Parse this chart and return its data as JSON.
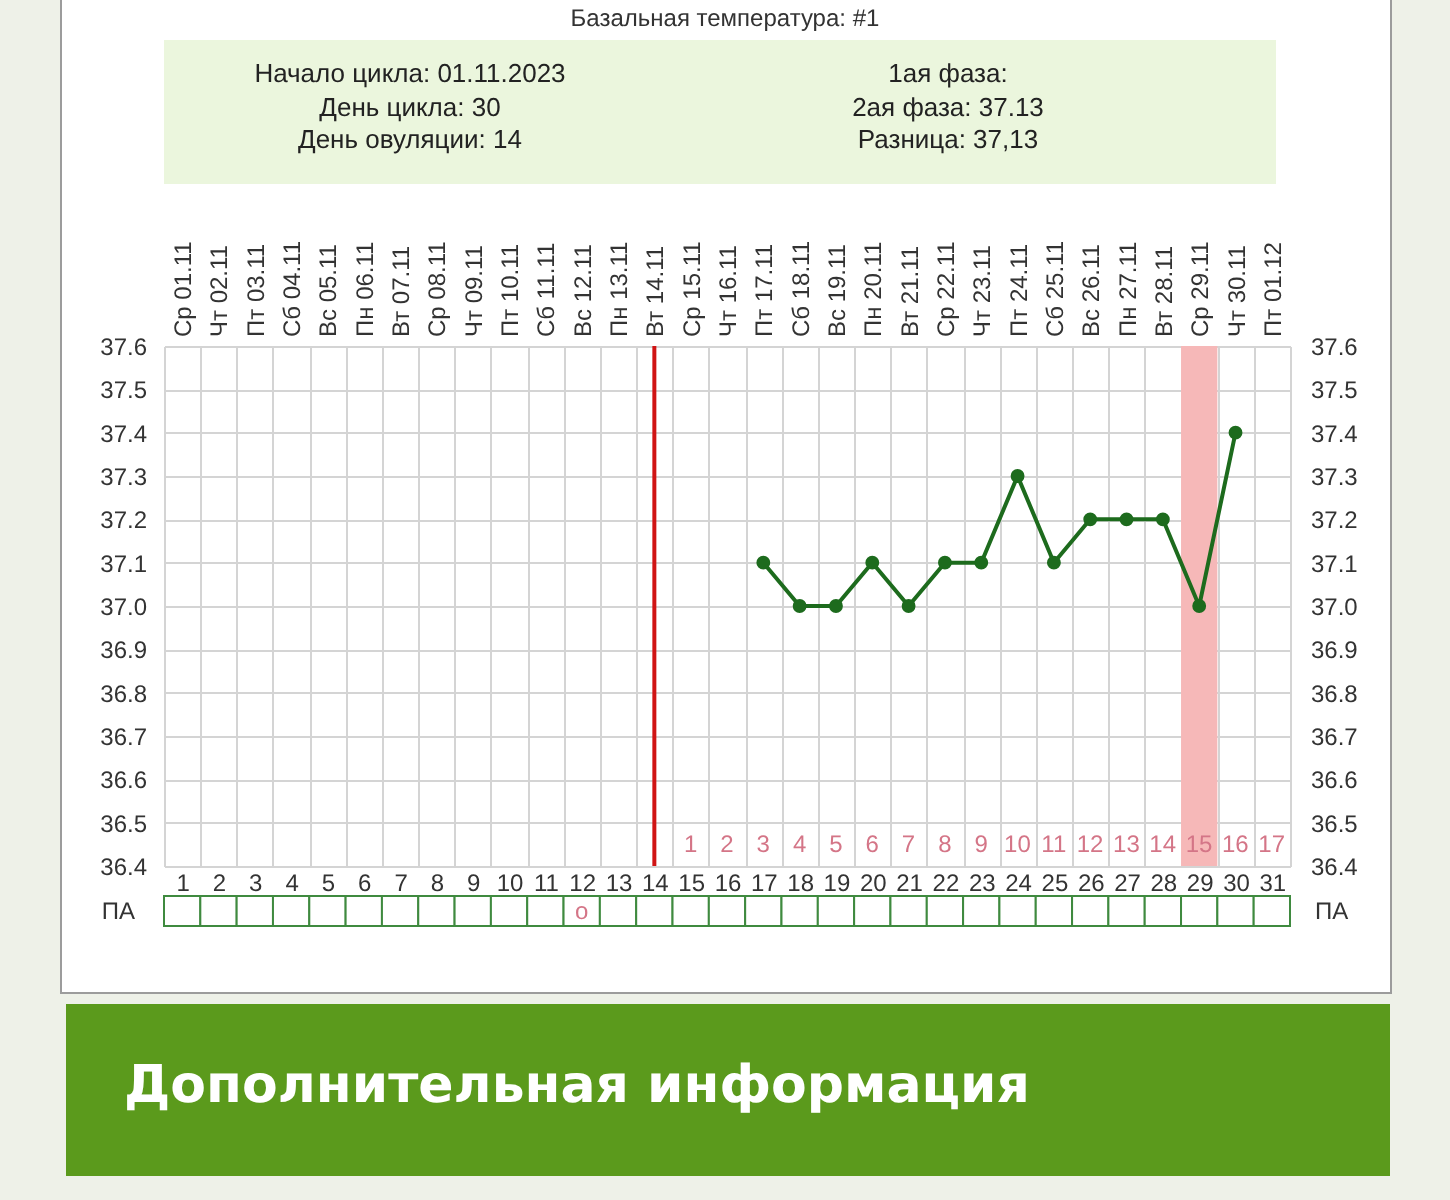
{
  "chart_data": [
    {
      "type": "line",
      "title": "Базальная температура: #1",
      "annotations": [
        "Начало цикла: 01.11.2023",
        "День цикла: 30",
        "День овуляции: 14",
        "1ая фаза:",
        "2ая фаза: 37.13",
        "Разница: 37,13",
        "1 2 3 4 5 6 7 8 9 10 11 12 13 14 15 16 17",
        "Дополнительная информация"
      ],
      "series": [
        {
          "color": "#1d6b1d",
          "x": [
            17,
            18,
            19,
            20,
            21,
            22,
            23,
            24,
            25,
            26,
            27,
            28,
            29,
            30
          ],
          "values": [
            37.1,
            37,
            37,
            37.1,
            37,
            37.1,
            37.1,
            37.3,
            37.1,
            37.2,
            37.2,
            37.2,
            37,
            37.4
          ]
        }
      ],
      "xlim": [
        0.5,
        31.5
      ],
      "xticks": [
        1,
        2,
        3,
        4,
        5,
        6,
        7,
        8,
        9,
        10,
        11,
        12,
        13,
        14,
        15,
        16,
        17,
        18,
        19,
        20,
        21,
        22,
        23,
        24,
        25,
        26,
        27,
        28,
        29,
        30,
        31
      ],
      "x2lim": [
        "2023-10-31T12:00",
        "2023-12-01T12:00"
      ],
      "x2ticks": [
        {
          "value": "2023-11-01",
          "label": "Ср 01.11"
        },
        {
          "value": "2023-11-02",
          "label": "Чт 02.11"
        },
        {
          "value": "2023-11-03",
          "label": "Пт 03.11"
        },
        {
          "value": "2023-11-04",
          "label": "Сб 04.11"
        },
        {
          "value": "2023-11-05",
          "label": "Вс 05.11"
        },
        {
          "value": "2023-11-06",
          "label": "Пн 06.11"
        },
        {
          "value": "2023-11-07",
          "label": "Вт 07.11"
        },
        {
          "value": "2023-11-08",
          "label": "Ср 08.11"
        },
        {
          "value": "2023-11-09",
          "label": "Чт 09.11"
        },
        {
          "value": "2023-11-10",
          "label": "Пт 10.11"
        },
        {
          "value": "2023-11-11",
          "label": "Сб 11.11"
        },
        {
          "value": "2023-11-12",
          "label": "Вс 12.11"
        },
        {
          "value": "2023-11-13",
          "label": "Пн 13.11"
        },
        {
          "value": "2023-11-14",
          "label": "Вт 14.11"
        },
        {
          "value": "2023-11-15",
          "label": "Ср 15.11"
        },
        {
          "value": "2023-11-16",
          "label": "Чт 16.11"
        },
        {
          "value": "2023-11-17",
          "label": "Пт 17.11"
        },
        {
          "value": "2023-11-18",
          "label": "Сб 18.11"
        },
        {
          "value": "2023-11-19",
          "label": "Вс 19.11"
        },
        {
          "value": "2023-11-20",
          "label": "Пн 20.11"
        },
        {
          "value": "2023-11-21",
          "label": "Вт 21.11"
        },
        {
          "value": "2023-11-22",
          "label": "Ср 22.11"
        },
        {
          "value": "2023-11-23",
          "label": "Чт 23.11"
        },
        {
          "value": "2023-11-24",
          "label": "Пт 24.11"
        },
        {
          "value": "2023-11-25",
          "label": "Сб 25.11"
        },
        {
          "value": "2023-11-26",
          "label": "Вс 26.11"
        },
        {
          "value": "2023-11-27",
          "label": "Пн 27.11"
        },
        {
          "value": "2023-11-28",
          "label": "Вт 28.11"
        },
        {
          "value": "2023-11-29",
          "label": "Ср 29.11"
        },
        {
          "value": "2023-11-30",
          "label": "Чт 30.11"
        },
        {
          "value": "2023-12-01",
          "label": "Пт 01.12"
        }
      ],
      "ylim": [
        36.4,
        37.6
      ],
      "yticks": [
        36.4,
        36.5,
        36.6,
        36.7,
        36.8,
        36.9,
        {
          "value": 37,
          "label": "37.0"
        },
        37.1,
        37.2,
        37.3,
        37.4,
        37.5,
        37.6
      ],
      "y2lim": [
        36.4,
        37.6
      ],
      "y2ticks": [
        36.4,
        36.5,
        36.6,
        36.7,
        36.8,
        36.9,
        {
          "value": 37,
          "label": "37.0"
        },
        37.1,
        37.2,
        37.3,
        37.4,
        37.5,
        37.6
      ],
      "ref_lines": [
        {
          "axis": "x",
          "value": 14,
          "color": "#d01414"
        }
      ],
      "bands": [
        {
          "axis": "x",
          "from": 28.5,
          "to": 29.5,
          "color": "#f6b8b8"
        }
      ],
      "grid": true,
      "marker": "circle",
      "line_style": "solid"
    },
    {
      "type": "heatmap",
      "categories": [
        null,
        null,
        null,
        null,
        null,
        null,
        null,
        null,
        null,
        null,
        null,
        null,
        null,
        null,
        null,
        null,
        null,
        null,
        null,
        null,
        null,
        null,
        null,
        null,
        null,
        null,
        null,
        null,
        null,
        null,
        null
      ],
      "y_categories": [
        "ПА"
      ],
      "y2_categories": [
        "ПА"
      ],
      "cells": [
        [
          null,
          null,
          null,
          null,
          null,
          null,
          null,
          null,
          null,
          null,
          null,
          null,
          null,
          null,
          null,
          null,
          null,
          null,
          null,
          null,
          null,
          null,
          null,
          null,
          null,
          null,
          null,
          null,
          null,
          null,
          null
        ]
      ],
      "cell_labels": [
        [
          null,
          null,
          null,
          null,
          null,
          null,
          null,
          null,
          null,
          null,
          null,
          "o",
          null,
          null,
          null,
          null,
          null,
          null,
          null,
          null,
          null,
          null,
          null,
          null,
          null,
          null,
          null,
          null,
          null,
          null,
          null
        ]
      ]
    }
  ]
}
